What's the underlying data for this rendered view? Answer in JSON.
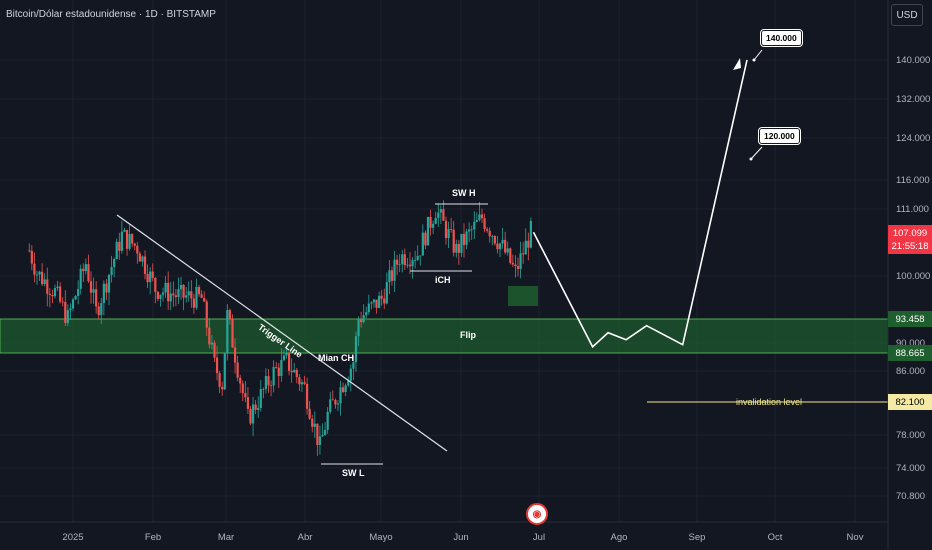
{
  "header": {
    "title": "Bitcoin/Dólar estadounidense · 1D · BITSTAMP"
  },
  "currency_button": {
    "label": "USD"
  },
  "price_tags": {
    "last_price": "107.099",
    "countdown": "21:55:18",
    "flip_top": "93.458",
    "flip_bottom": "88.665",
    "invalidation": "82.100"
  },
  "annotations": {
    "trigger_line": "Trigger Line",
    "main_ch": "Mian CH",
    "sw_h": "SW H",
    "ich": "iCH",
    "sw_l": "SW L",
    "flip": "Flip",
    "invalidation": "invalidation level",
    "target_1": "140.000",
    "target_2": "120.000"
  },
  "colors": {
    "background": "#131722",
    "up_candle": "#26a69a",
    "down_candle": "#ef5350",
    "flip_zone": "#1e5a2e",
    "flip_border": "#4caf50",
    "invalidation_line": "#f0e68c",
    "last_price_tag": "#f23645"
  },
  "chart_data": {
    "type": "candlestick",
    "title": "Bitcoin/Dólar estadounidense · 1D · BITSTAMP",
    "yscale": "log",
    "ylim": [
      68000,
      156000
    ],
    "y_ticks": [
      "140.000",
      "132.000",
      "124.000",
      "116.000",
      "111.000",
      "100.000",
      "90.000",
      "86.000",
      "78.000",
      "74.000",
      "70.800"
    ],
    "x_ticks": [
      "2025",
      "Feb",
      "Mar",
      "Abr",
      "Mayo",
      "Jun",
      "Jul",
      "Ago",
      "Sep",
      "Oct",
      "Nov"
    ],
    "price_path": [
      {
        "date": "2024-12-15",
        "price": 104000
      },
      {
        "date": "2024-12-18",
        "price": 100500
      },
      {
        "date": "2024-12-25",
        "price": 97500
      },
      {
        "date": "2024-12-30",
        "price": 93500
      },
      {
        "date": "2025-01-06",
        "price": 102000
      },
      {
        "date": "2025-01-10",
        "price": 94500
      },
      {
        "date": "2025-01-20",
        "price": 106500
      },
      {
        "date": "2025-01-26",
        "price": 104500
      },
      {
        "date": "2025-02-02",
        "price": 98000
      },
      {
        "date": "2025-02-10",
        "price": 97000
      },
      {
        "date": "2025-02-20",
        "price": 96500
      },
      {
        "date": "2025-02-25",
        "price": 87000
      },
      {
        "date": "2025-02-28",
        "price": 84500
      },
      {
        "date": "2025-03-02",
        "price": 94000
      },
      {
        "date": "2025-03-10",
        "price": 80000
      },
      {
        "date": "2025-03-20",
        "price": 86000
      },
      {
        "date": "2025-03-25",
        "price": 87500
      },
      {
        "date": "2025-04-01",
        "price": 84000
      },
      {
        "date": "2025-04-07",
        "price": 76500
      },
      {
        "date": "2025-04-10",
        "price": 80500
      },
      {
        "date": "2025-04-20",
        "price": 87500
      },
      {
        "date": "2025-04-22",
        "price": 93500
      },
      {
        "date": "2025-05-01",
        "price": 96500
      },
      {
        "date": "2025-05-08",
        "price": 103000
      },
      {
        "date": "2025-05-15",
        "price": 103500
      },
      {
        "date": "2025-05-22",
        "price": 111000
      },
      {
        "date": "2025-05-30",
        "price": 104000
      },
      {
        "date": "2025-06-09",
        "price": 109500
      },
      {
        "date": "2025-06-17",
        "price": 104500
      },
      {
        "date": "2025-06-22",
        "price": 100500
      },
      {
        "date": "2025-06-28",
        "price": 107100
      }
    ],
    "projection": [
      {
        "date": "2025-06-29",
        "price": 107000
      },
      {
        "date": "2025-07-22",
        "price": 89500
      },
      {
        "date": "2025-07-28",
        "price": 91500
      },
      {
        "date": "2025-08-04",
        "price": 90500
      },
      {
        "date": "2025-08-12",
        "price": 92500
      },
      {
        "date": "2025-08-26",
        "price": 89800
      },
      {
        "date": "2025-09-20",
        "price": 140000
      }
    ],
    "levels": {
      "flip_zone": [
        88665,
        93458
      ],
      "invalidation_level": 82100,
      "targets": [
        120000,
        140000
      ],
      "sw_h": 112000,
      "sw_l": 74500
    }
  }
}
